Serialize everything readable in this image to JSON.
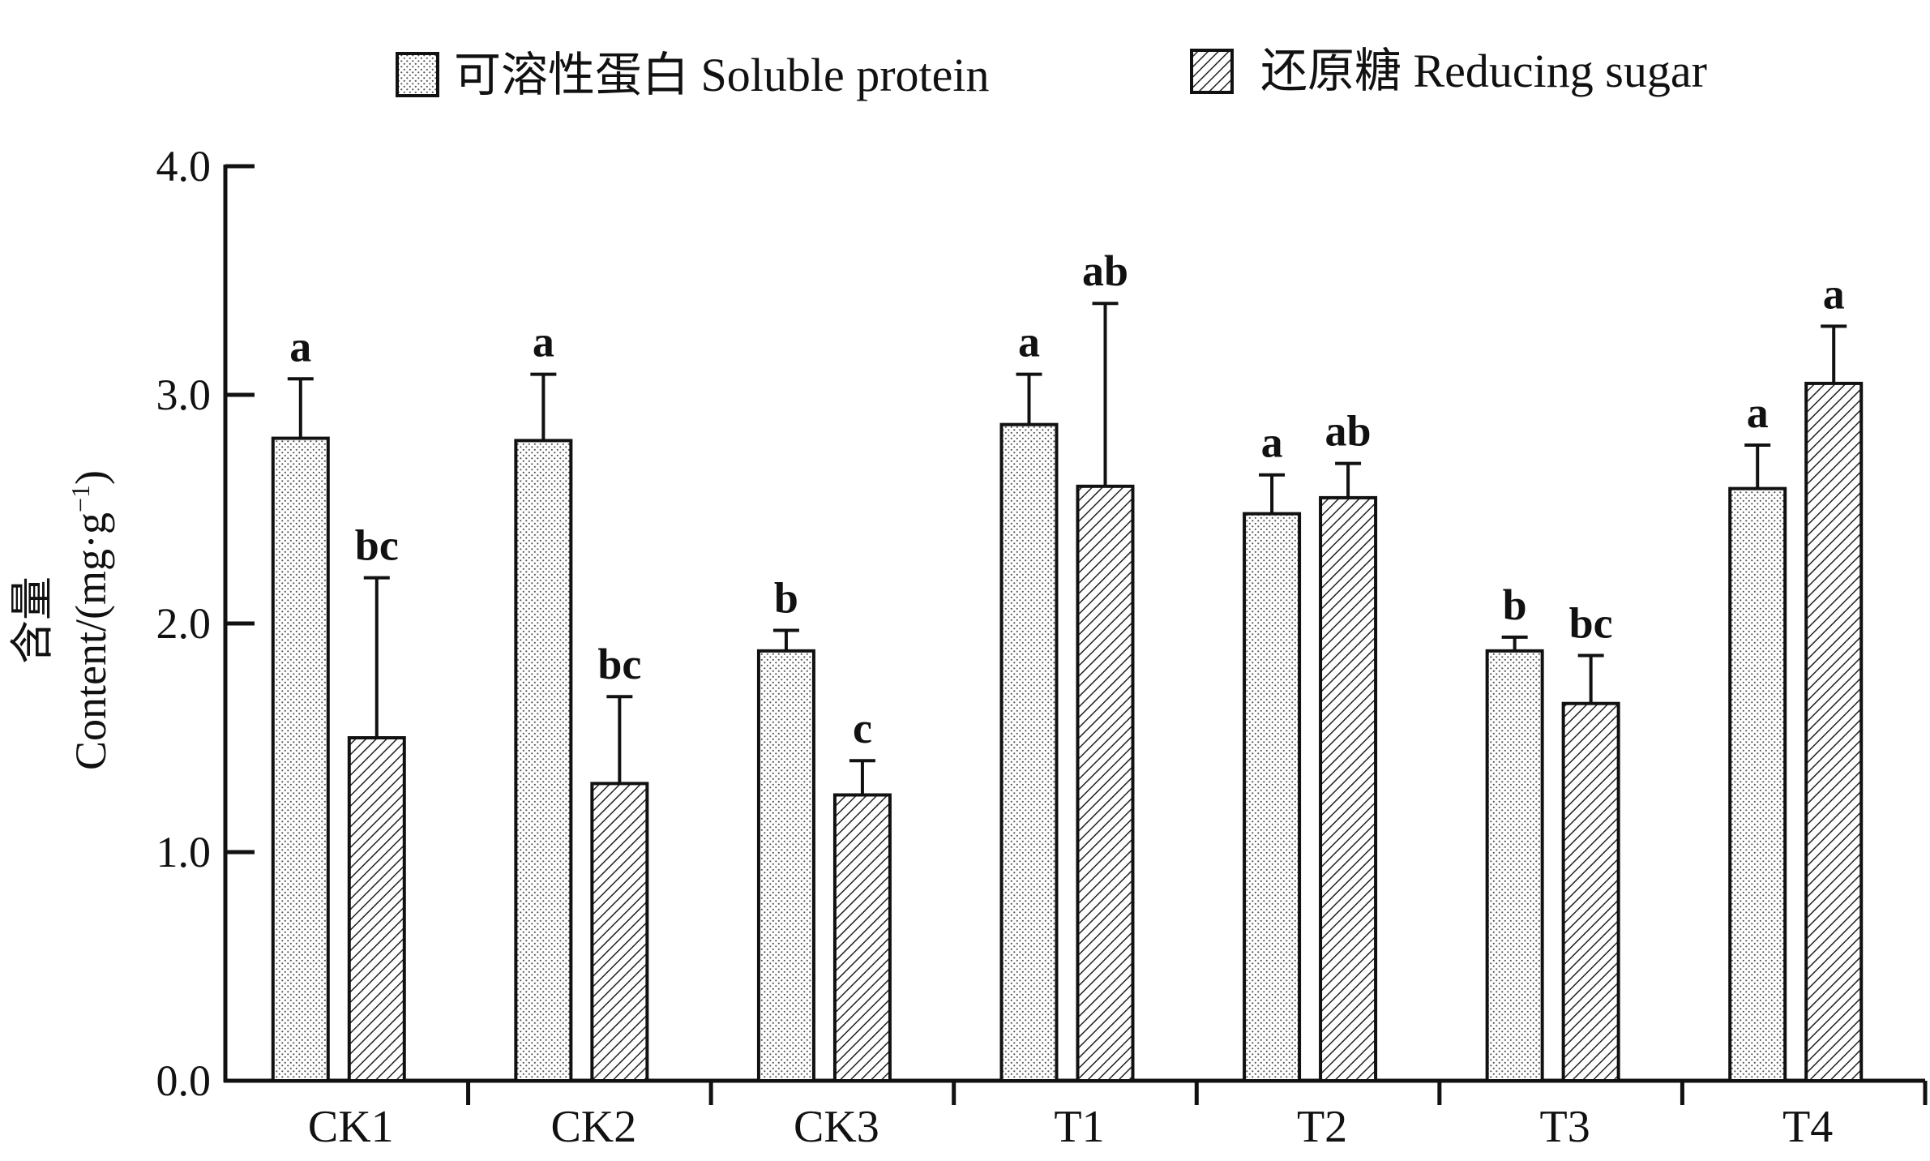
{
  "chart_data": {
    "type": "bar",
    "title": "",
    "xlabel": "",
    "ylabel_cn": "含量",
    "ylabel_en": "Content/(mg·g",
    "ylabel_sup": "−1",
    "ylabel_close": ")",
    "ylim": [
      0,
      4.0
    ],
    "yticks": [
      "0.0",
      "1.0",
      "2.0",
      "3.0",
      "4.0"
    ],
    "grid": false,
    "legend_position": "top",
    "categories": [
      "CK1",
      "CK2",
      "CK3",
      "T1",
      "T2",
      "T3",
      "T4"
    ],
    "series": [
      {
        "name": "可溶性蛋白 Soluble protein",
        "pattern": "dots",
        "values": [
          2.81,
          2.8,
          1.88,
          2.87,
          2.48,
          1.88,
          2.59
        ],
        "errors": [
          0.26,
          0.29,
          0.09,
          0.22,
          0.17,
          0.06,
          0.19
        ],
        "letters": [
          "a",
          "a",
          "b",
          "a",
          "a",
          "b",
          "a"
        ]
      },
      {
        "name": "还原糖 Reducing sugar",
        "pattern": "hatch",
        "values": [
          1.5,
          1.3,
          1.25,
          2.6,
          2.55,
          1.65,
          3.05
        ],
        "errors": [
          0.7,
          0.38,
          0.15,
          0.8,
          0.15,
          0.21,
          0.25
        ],
        "letters": [
          "bc",
          "bc",
          "c",
          "ab",
          "ab",
          "bc",
          "a"
        ]
      }
    ]
  }
}
